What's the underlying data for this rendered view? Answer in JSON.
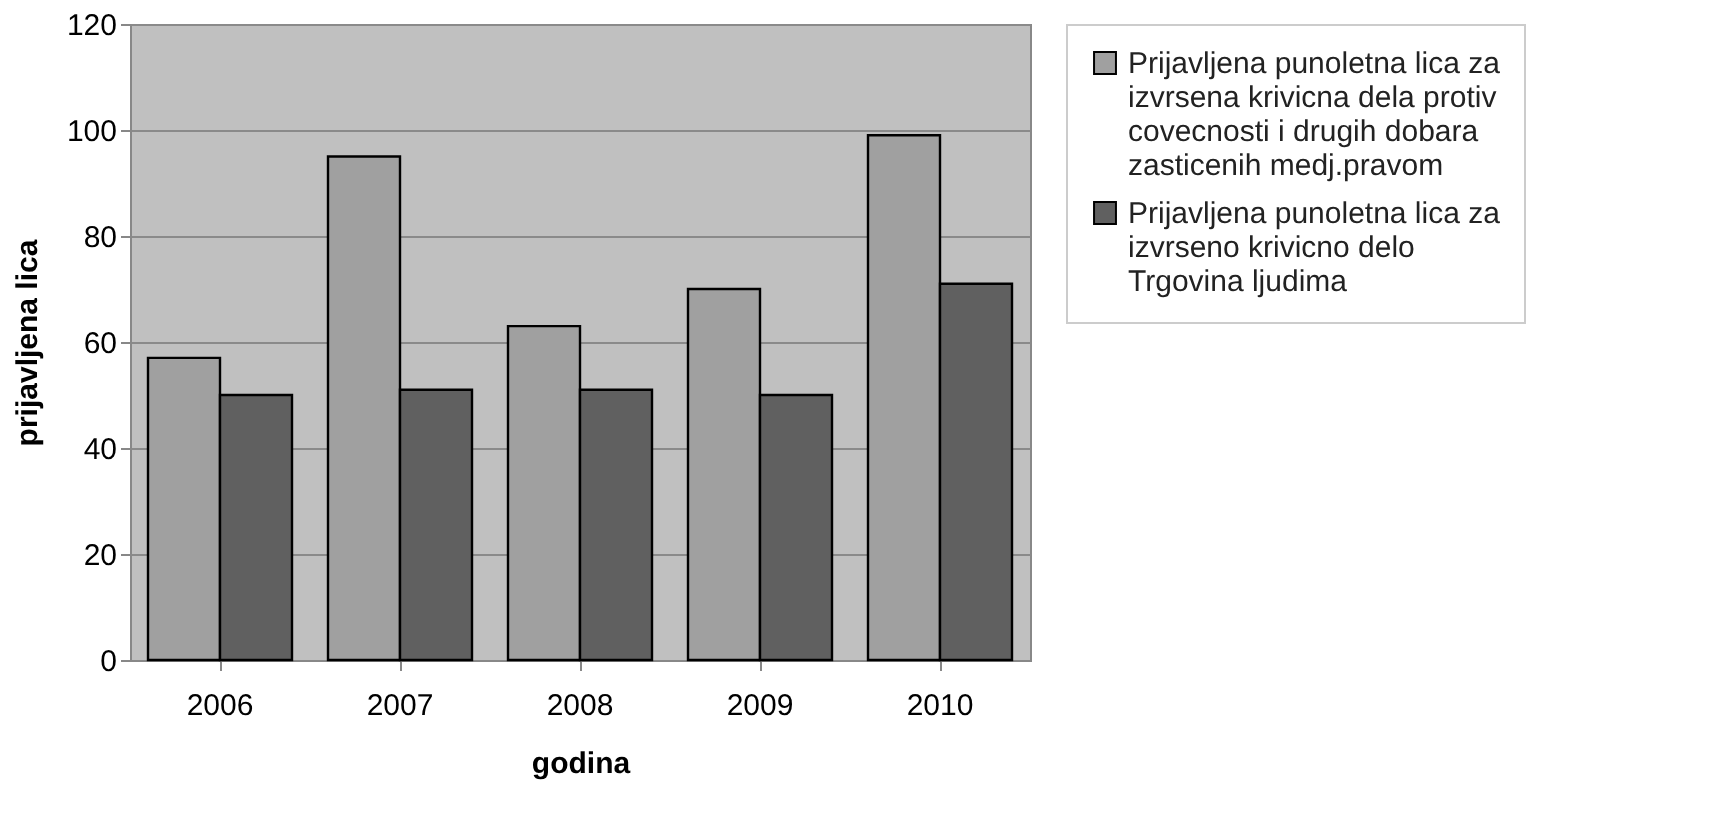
{
  "chart_data": {
    "type": "bar",
    "xlabel": "godina",
    "ylabel": "prijavljena lica",
    "categories": [
      "2006",
      "2007",
      "2008",
      "2009",
      "2010"
    ],
    "series": [
      {
        "name": "Prijavljena punoletna lica za izvrsena krivicna dela protiv covecnosti i drugih dobara zasticenih medj.pravom",
        "color": "#a0a0a0",
        "values": [
          57,
          95,
          63,
          70,
          99
        ]
      },
      {
        "name": "Prijavljena punoletna lica za izvrseno krivicno delo Trgovina ljudima",
        "color": "#606060",
        "values": [
          50,
          51,
          51,
          50,
          71
        ]
      }
    ],
    "ylim": [
      0,
      120
    ],
    "yticks": [
      0,
      20,
      40,
      60,
      80,
      100,
      120
    ],
    "grid": "y",
    "legend": "right"
  }
}
